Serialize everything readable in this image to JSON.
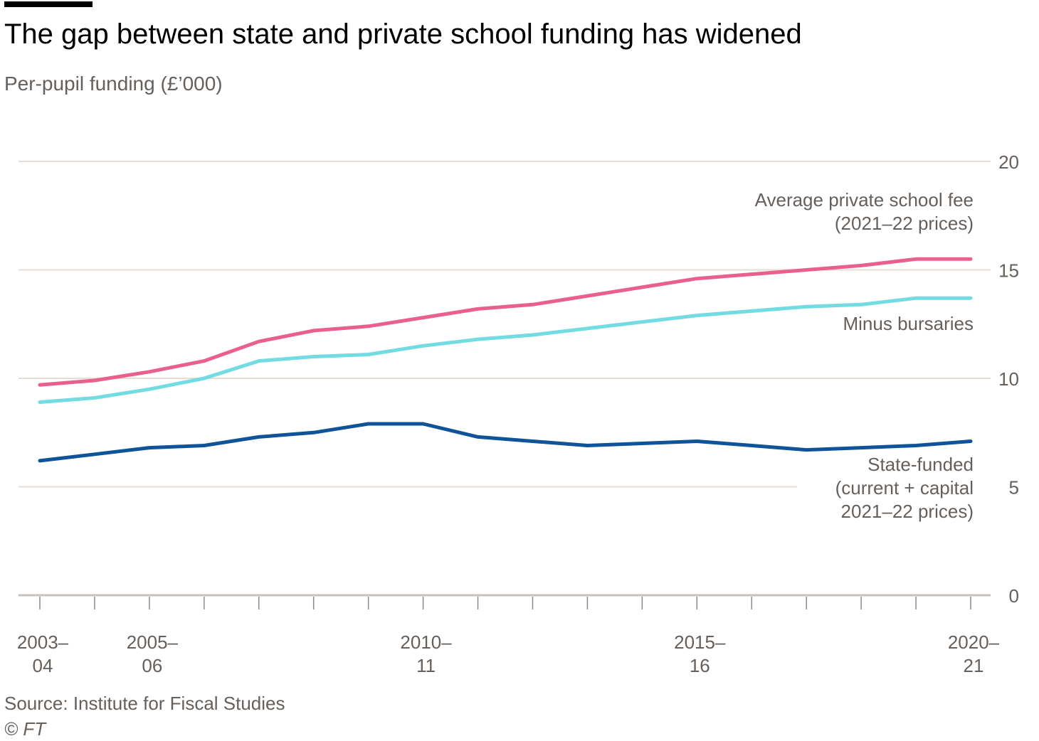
{
  "title": "The gap between state and private school funding has widened",
  "subtitle": "Per-pupil funding (£’000)",
  "source": "Source: Institute for Fiscal Studies",
  "copyright": "© FT",
  "chart_data": {
    "type": "line",
    "title": "The gap between state and private school funding has widened",
    "ylabel": "Per-pupil funding (£’000)",
    "xlabel": "",
    "ylim": [
      0,
      20
    ],
    "y_ticks": [
      "0",
      "5",
      "10",
      "15",
      "20"
    ],
    "x": [
      "2003–04",
      "2004–05",
      "2005–06",
      "2006–07",
      "2007–08",
      "2008–09",
      "2009–10",
      "2010–11",
      "2011–12",
      "2012–13",
      "2013–14",
      "2014–15",
      "2015–16",
      "2016–17",
      "2017–18",
      "2018–19",
      "2019–20",
      "2020–21"
    ],
    "x_tick_labels": [
      {
        "index": 0,
        "line1": "2003–",
        "line2": "04"
      },
      {
        "index": 2,
        "line1": "2005–",
        "line2": "06"
      },
      {
        "index": 7,
        "line1": "2010–",
        "line2": "11"
      },
      {
        "index": 12,
        "line1": "2015–",
        "line2": "16"
      },
      {
        "index": 17,
        "line1": "2020–",
        "line2": "21"
      }
    ],
    "series": [
      {
        "name": "Average private school fee (2021–22 prices)",
        "label_lines": [
          "Average private school fee",
          "(2021–22 prices)"
        ],
        "color": "#e9608d",
        "values": [
          9.7,
          9.9,
          10.3,
          10.8,
          11.7,
          12.2,
          12.4,
          12.8,
          13.2,
          13.4,
          13.8,
          14.2,
          14.6,
          14.8,
          15.0,
          15.2,
          15.5,
          15.5
        ]
      },
      {
        "name": "Minus bursaries",
        "label_lines": [
          "Minus bursaries"
        ],
        "color": "#72dce2",
        "values": [
          8.9,
          9.1,
          9.5,
          10.0,
          10.8,
          11.0,
          11.1,
          11.5,
          11.8,
          12.0,
          12.3,
          12.6,
          12.9,
          13.1,
          13.3,
          13.4,
          13.7,
          13.7
        ]
      },
      {
        "name": "State-funded (current + capital 2021–22 prices)",
        "label_lines": [
          "State-funded",
          "(current + capital",
          "2021–22 prices)"
        ],
        "color": "#0f5499",
        "values": [
          6.2,
          6.5,
          6.8,
          6.9,
          7.3,
          7.5,
          7.9,
          7.9,
          7.3,
          7.1,
          6.9,
          7.0,
          7.1,
          6.9,
          6.7,
          6.8,
          6.9,
          7.1
        ]
      }
    ],
    "colors": {
      "grid": "#e6ddd5",
      "axis": "#c8c1bb",
      "text": "#66605c"
    }
  }
}
